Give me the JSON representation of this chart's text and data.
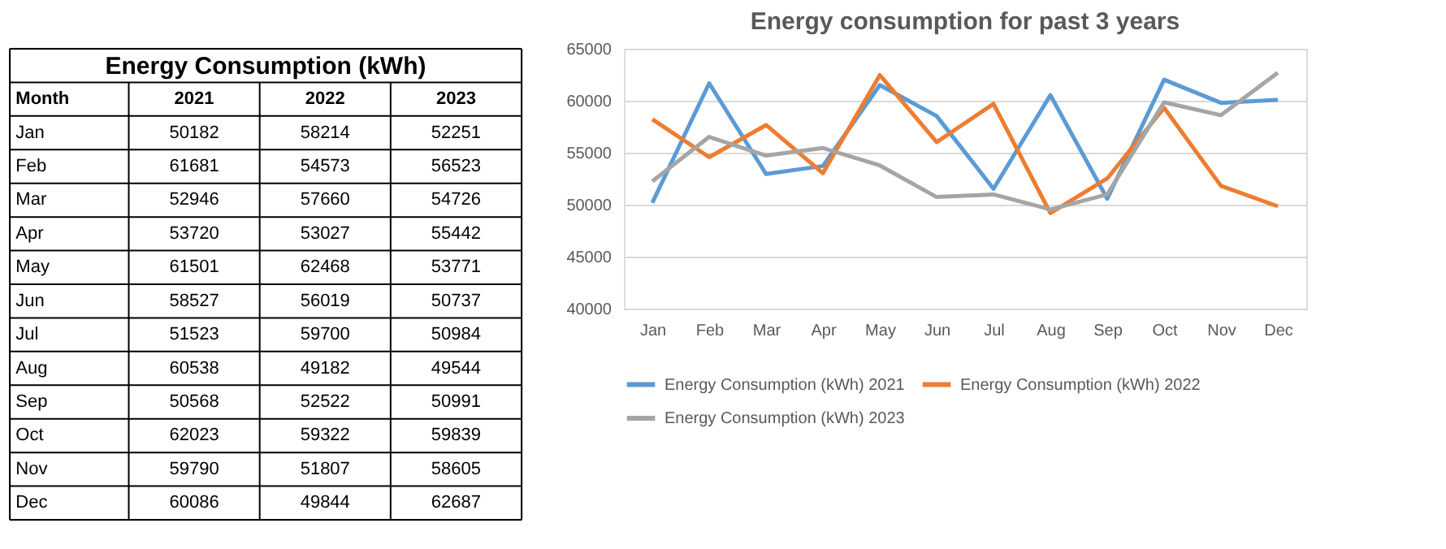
{
  "chart_data": [
    {
      "type": "other",
      "title": "Energy Consumption (kWh)",
      "annotations": [
        "Month"
      ],
      "data_labels": true,
      "categories": [
        "Jan",
        "Feb",
        "Mar",
        "Apr",
        "May",
        "Jun",
        "Jul",
        "Aug",
        "Sep",
        "Oct",
        "Nov",
        "Dec"
      ],
      "series": [
        {
          "name": "2021",
          "values": [
            50182,
            61681,
            52946,
            53720,
            61501,
            58527,
            51523,
            60538,
            50568,
            62023,
            59790,
            60086
          ]
        },
        {
          "name": "2022",
          "values": [
            58214,
            54573,
            57660,
            53027,
            62468,
            56019,
            59700,
            49182,
            52522,
            59322,
            51807,
            49844
          ]
        },
        {
          "name": "2023",
          "values": [
            52251,
            56523,
            54726,
            55442,
            53771,
            50737,
            50984,
            49544,
            50991,
            59839,
            58605,
            62687
          ]
        }
      ]
    },
    {
      "type": "line",
      "title": "Energy consumption for past 3 years",
      "categories": [
        "Jan",
        "Feb",
        "Mar",
        "Apr",
        "May",
        "Jun",
        "Jul",
        "Aug",
        "Sep",
        "Oct",
        "Nov",
        "Dec"
      ],
      "series": [
        {
          "name": "Energy Consumption (kWh) 2021",
          "color": "#5b9bd5",
          "values": [
            50182,
            61681,
            52946,
            53720,
            61501,
            58527,
            51523,
            60538,
            50568,
            62023,
            59790,
            60086
          ]
        },
        {
          "name": "Energy Consumption (kWh) 2022",
          "color": "#ed7d31",
          "values": [
            58214,
            54573,
            57660,
            53027,
            62468,
            56019,
            59700,
            49182,
            52522,
            59322,
            51807,
            49844
          ]
        },
        {
          "name": "Energy Consumption (kWh) 2023",
          "color": "#a5a5a5",
          "values": [
            52251,
            56523,
            54726,
            55442,
            53771,
            50737,
            50984,
            49544,
            50991,
            59839,
            58605,
            62687
          ]
        }
      ],
      "ylim": [
        40000,
        65000
      ],
      "yticks": [
        40000,
        45000,
        50000,
        55000,
        60000,
        65000
      ],
      "grid": "y",
      "legend": "bottom",
      "marker": "none",
      "line_style": "solid"
    }
  ]
}
